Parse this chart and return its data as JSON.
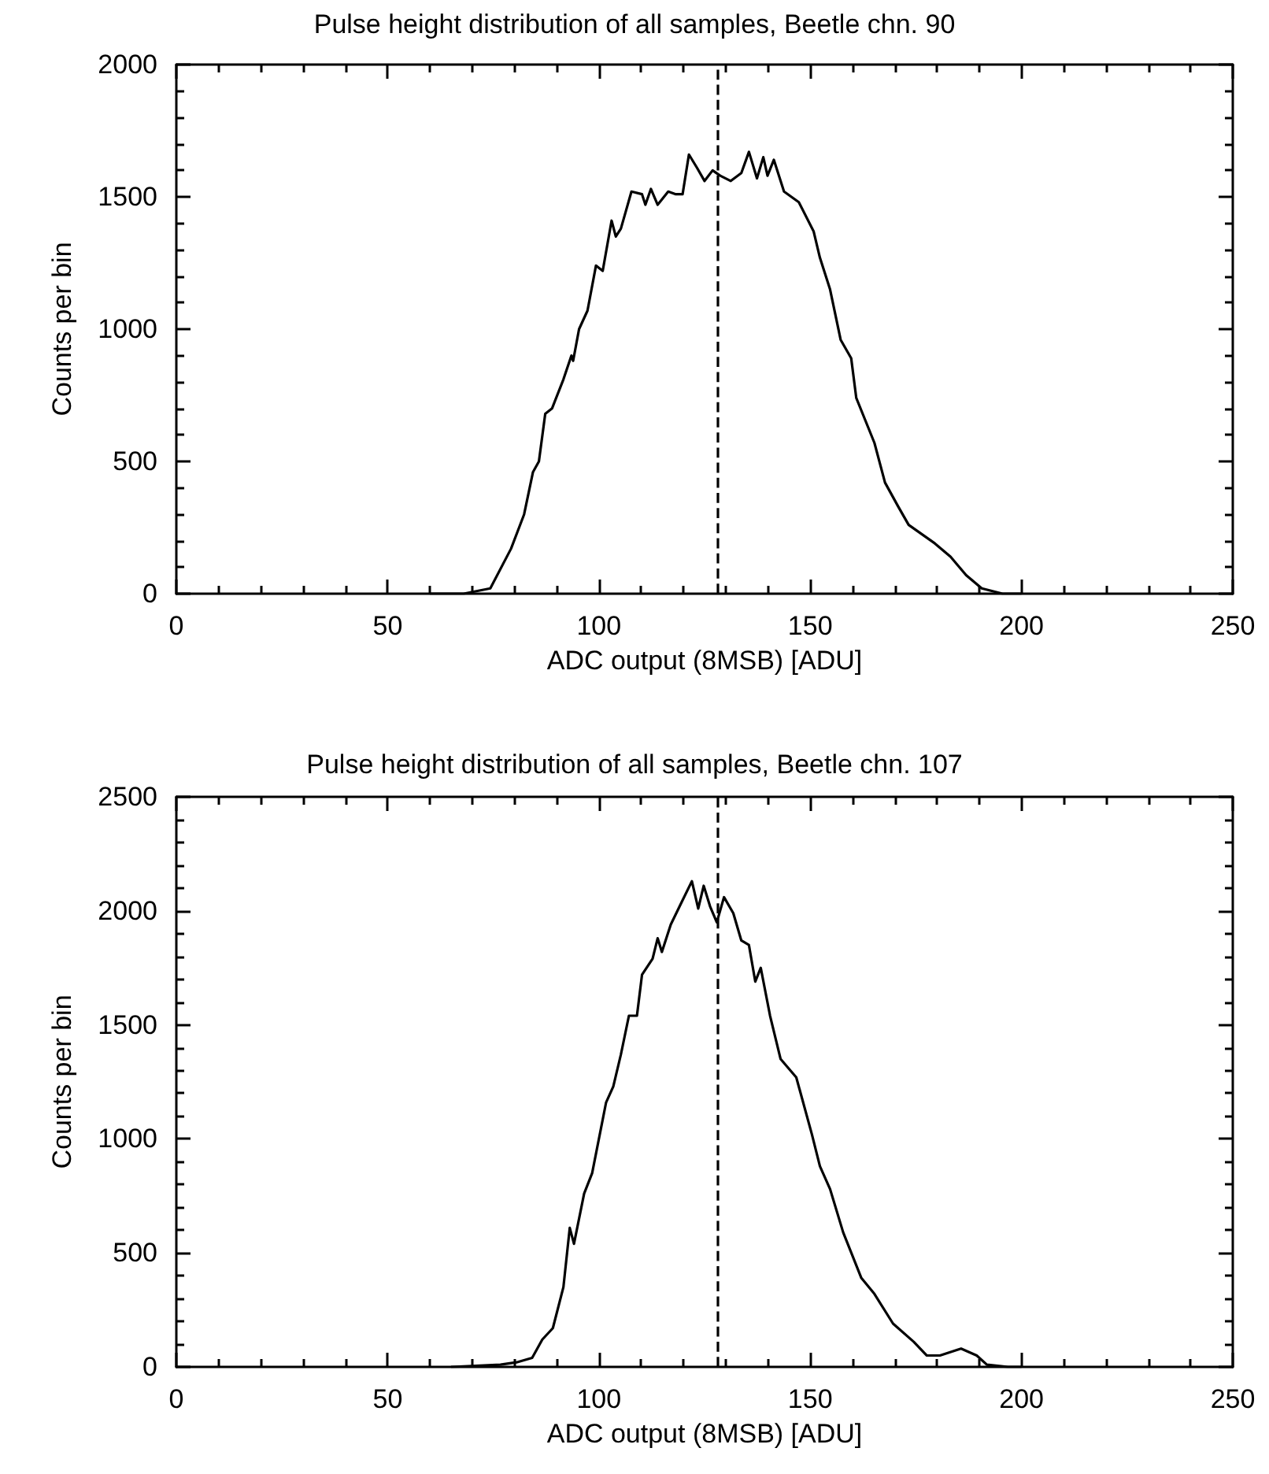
{
  "chart_data": [
    {
      "type": "line",
      "title": "Pulse height distribution of all samples, Beetle chn. 90",
      "xlabel": "ADC output (8MSB) [ADU]",
      "ylabel": "Counts per bin",
      "x": [
        60,
        68,
        74.3,
        79.2,
        82.3,
        84.4,
        85.8,
        87.3,
        88.9,
        91.6,
        93.5,
        93.9,
        95.3,
        97.3,
        99.3,
        100.9,
        103,
        104,
        105.2,
        107.7,
        110.2,
        111,
        112.3,
        113.9,
        116.4,
        118.2,
        119.8,
        121.3,
        123.2,
        125,
        126.9,
        128.7,
        131.2,
        133.7,
        135.5,
        137.4,
        138.9,
        139.9,
        141.4,
        143.8,
        147.3,
        150.8,
        152.3,
        154.7,
        157.2,
        159.7,
        160.9,
        165.2,
        167.7,
        170.8,
        173.3,
        179.5,
        183.2,
        186.9,
        190.6,
        195.5,
        200
      ],
      "values": [
        0,
        0,
        20,
        170,
        300,
        460,
        500,
        680,
        700,
        810,
        900,
        880,
        1000,
        1070,
        1240,
        1220,
        1410,
        1350,
        1380,
        1520,
        1510,
        1470,
        1530,
        1470,
        1520,
        1510,
        1510,
        1660,
        1610,
        1560,
        1600,
        1580,
        1560,
        1590,
        1670,
        1570,
        1650,
        1580,
        1640,
        1520,
        1480,
        1370,
        1270,
        1150,
        960,
        890,
        740,
        570,
        420,
        330,
        260,
        190,
        140,
        70,
        20,
        0,
        0
      ],
      "color": "#000000",
      "marker": "none",
      "line_style": "solid",
      "grid": false,
      "xlim": [
        0,
        250
      ],
      "xticks": [
        0,
        50,
        100,
        150,
        200,
        250
      ],
      "ylim": [
        0,
        2000
      ],
      "yticks": [
        0,
        500,
        1000,
        1500,
        2000
      ],
      "ref_lines": [
        {
          "axis": "x",
          "value": 128,
          "color": "#000000",
          "line_style": "dashed"
        }
      ]
    },
    {
      "type": "line",
      "title": "Pulse height distribution of all samples, Beetle chn. 107",
      "xlabel": "ADC output (8MSB) [ADU]",
      "ylabel": "Counts per bin",
      "x": [
        65,
        76.7,
        80.5,
        84.2,
        86.6,
        89.1,
        91.6,
        93.1,
        94.1,
        96.5,
        98.4,
        101.7,
        103.4,
        105.2,
        107.1,
        109,
        110.2,
        112.7,
        113.9,
        114.9,
        117,
        119.1,
        122,
        123.5,
        124.8,
        126.3,
        127.9,
        129.6,
        131.8,
        133.7,
        135.5,
        137,
        138.3,
        140.5,
        143,
        146.7,
        150.4,
        152.3,
        154.7,
        157.8,
        162.1,
        165.2,
        169.6,
        174.5,
        177.6,
        180.7,
        185.7,
        189.4,
        191.8,
        196.8,
        200
      ],
      "values": [
        0,
        10,
        20,
        40,
        120,
        170,
        350,
        610,
        540,
        760,
        850,
        1160,
        1230,
        1370,
        1540,
        1540,
        1720,
        1790,
        1880,
        1820,
        1940,
        2020,
        2130,
        2010,
        2110,
        2020,
        1950,
        2060,
        1990,
        1870,
        1850,
        1690,
        1750,
        1540,
        1350,
        1270,
        1020,
        880,
        780,
        590,
        390,
        320,
        190,
        110,
        50,
        50,
        80,
        50,
        10,
        0,
        0
      ],
      "color": "#000000",
      "marker": "none",
      "line_style": "solid",
      "grid": false,
      "xlim": [
        0,
        250
      ],
      "xticks": [
        0,
        50,
        100,
        150,
        200,
        250
      ],
      "ylim": [
        0,
        2500
      ],
      "yticks": [
        0,
        500,
        1000,
        1500,
        2000,
        2500
      ],
      "ref_lines": [
        {
          "axis": "x",
          "value": 128,
          "color": "#000000",
          "line_style": "dashed"
        }
      ]
    }
  ]
}
